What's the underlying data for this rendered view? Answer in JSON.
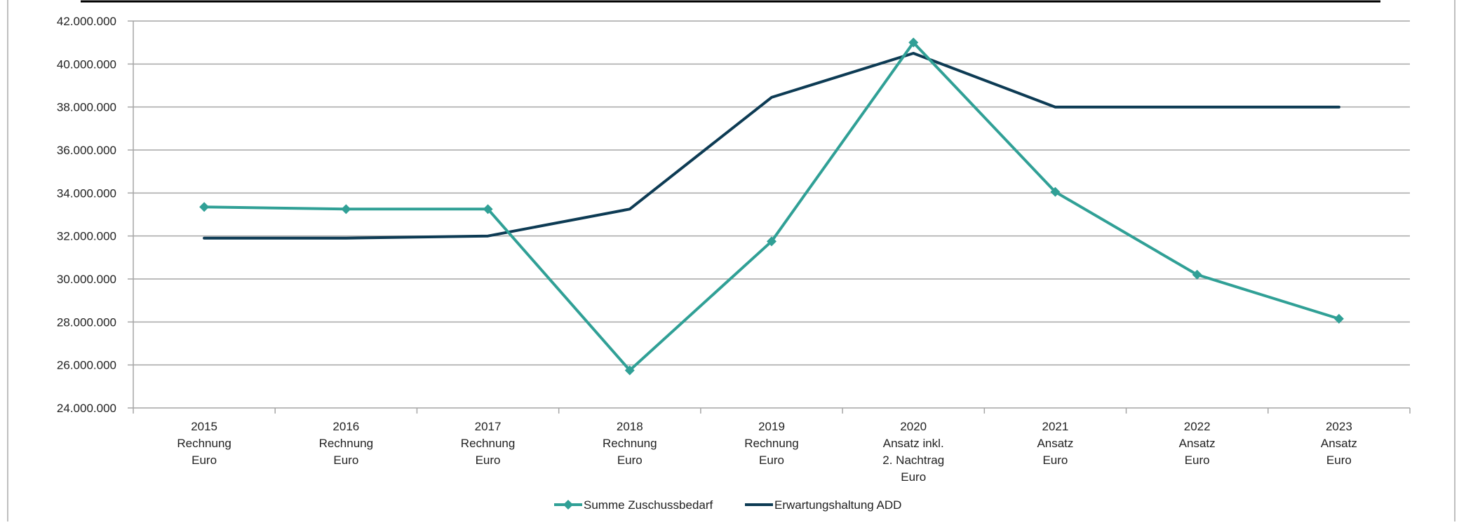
{
  "chart_data": {
    "type": "line",
    "categories": [
      [
        "2015",
        "Rechnung",
        "Euro"
      ],
      [
        "2016",
        "Rechnung",
        "Euro"
      ],
      [
        "2017",
        "Rechnung",
        "Euro"
      ],
      [
        "2018",
        "Rechnung",
        "Euro"
      ],
      [
        "2019",
        "Rechnung",
        "Euro"
      ],
      [
        "2020",
        "Ansatz inkl.",
        "2. Nachtrag",
        "Euro"
      ],
      [
        "2021",
        "Ansatz",
        "Euro"
      ],
      [
        "2022",
        "Ansatz",
        "Euro"
      ],
      [
        "2023",
        "Ansatz",
        "Euro"
      ]
    ],
    "series": [
      {
        "name": "Summe Zuschussbedarf",
        "color": "#30a096",
        "marker": "diamond",
        "values": [
          33350000,
          33250000,
          33250000,
          25750000,
          31750000,
          41000000,
          34050000,
          30200000,
          28150000
        ]
      },
      {
        "name": "Erwartungshaltung ADD",
        "color": "#0d3b54",
        "marker": "none",
        "values": [
          31900000,
          31900000,
          32000000,
          33250000,
          38450000,
          40500000,
          38000000,
          38000000,
          38000000
        ]
      }
    ],
    "y_ticks": [
      "24.000.000",
      "26.000.000",
      "28.000.000",
      "30.000.000",
      "32.000.000",
      "34.000.000",
      "36.000.000",
      "38.000.000",
      "40.000.000",
      "42.000.000"
    ],
    "ylim": [
      24000000,
      42000000
    ],
    "ytick_step": 2000000,
    "grid": true,
    "legend_position": "bottom-center"
  }
}
